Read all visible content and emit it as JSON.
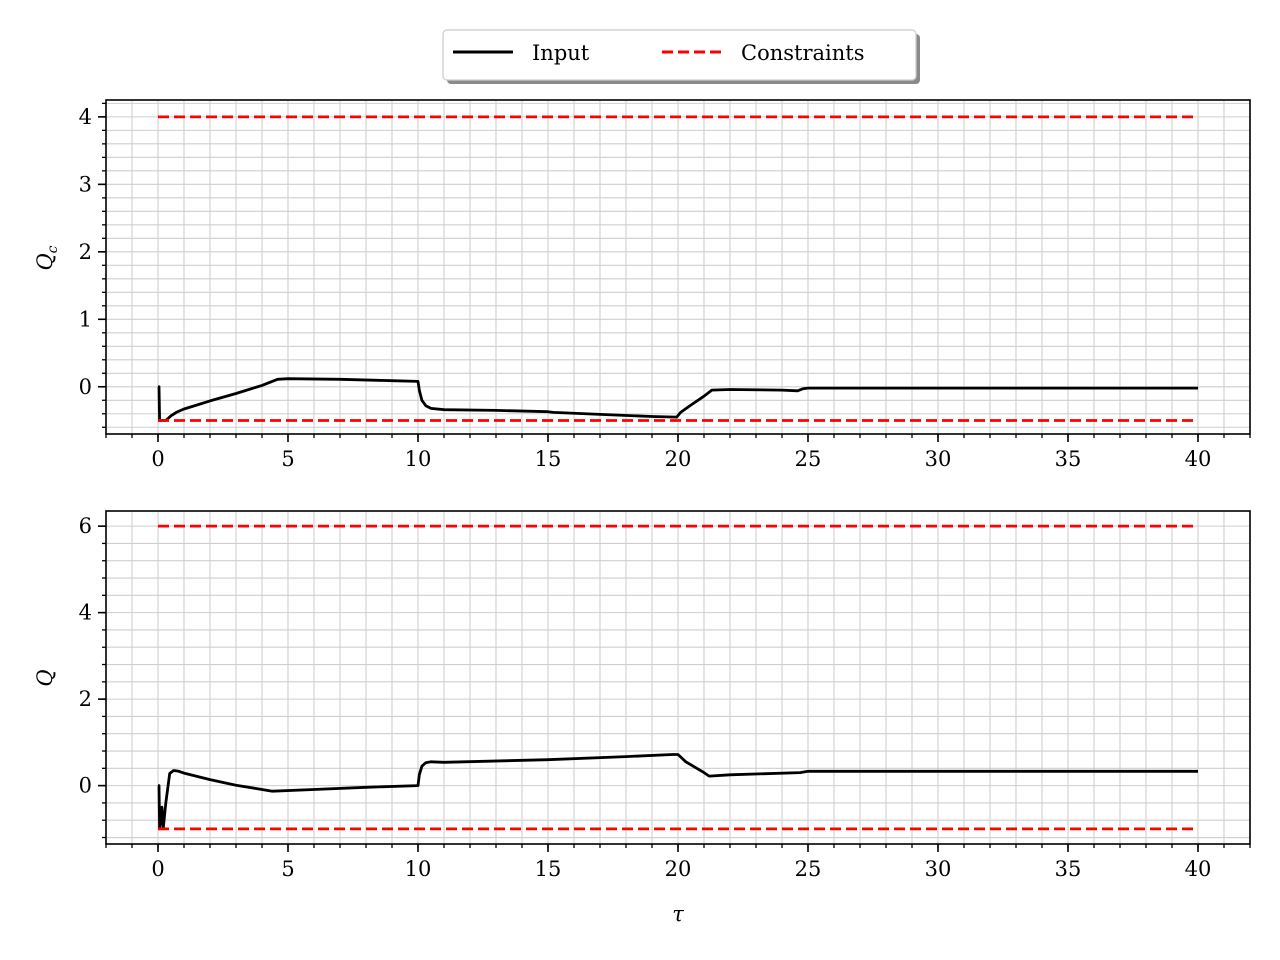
{
  "legend": {
    "location": "top-center",
    "entries": [
      {
        "label": "Input",
        "color": "#000000",
        "style": "solid"
      },
      {
        "label": "Constraints",
        "color": "#ff0000",
        "style": "dashed"
      }
    ]
  },
  "chart_data": [
    {
      "type": "line",
      "title": "",
      "xlabel": "",
      "ylabel": "Q_c",
      "xlim": [
        -2,
        42
      ],
      "ylim": [
        -0.7,
        4.25
      ],
      "xticks": [
        0,
        5,
        10,
        15,
        20,
        25,
        30,
        35,
        40
      ],
      "yticks": [
        0,
        1,
        2,
        3,
        4
      ],
      "grid": true,
      "series": [
        {
          "name": "Input",
          "color": "#000000",
          "style": "solid",
          "x": [
            0,
            0.04,
            0.06,
            0.1,
            0.3,
            0.5,
            0.7,
            1,
            1.5,
            2,
            3,
            4,
            4.6,
            5,
            7,
            9,
            10,
            10.05,
            10.15,
            10.3,
            10.5,
            11,
            13,
            15,
            15.2,
            17,
            19,
            19.95,
            20.1,
            20.5,
            21,
            21.3,
            22,
            24,
            24.6,
            24.8,
            25,
            30,
            35,
            40
          ],
          "y": [
            0,
            0,
            -0.5,
            -0.5,
            -0.5,
            -0.43,
            -0.38,
            -0.33,
            -0.27,
            -0.21,
            -0.1,
            0.02,
            0.11,
            0.12,
            0.11,
            0.09,
            0.08,
            -0.05,
            -0.2,
            -0.28,
            -0.32,
            -0.34,
            -0.35,
            -0.37,
            -0.38,
            -0.41,
            -0.44,
            -0.45,
            -0.38,
            -0.27,
            -0.14,
            -0.05,
            -0.04,
            -0.05,
            -0.06,
            -0.03,
            -0.02,
            -0.02,
            -0.02,
            -0.02
          ]
        },
        {
          "name": "Constraints",
          "color": "#ff0000",
          "style": "dashed",
          "x": [
            0,
            40
          ],
          "y": [
            4,
            4
          ]
        },
        {
          "name": "Constraints",
          "color": "#ff0000",
          "style": "dashed",
          "x": [
            0,
            40
          ],
          "y": [
            -0.5,
            -0.5
          ]
        }
      ]
    },
    {
      "type": "line",
      "title": "",
      "xlabel": "τ",
      "ylabel": "Q",
      "xlim": [
        -2,
        42
      ],
      "ylim": [
        -1.35,
        6.35
      ],
      "xticks": [
        0,
        5,
        10,
        15,
        20,
        25,
        30,
        35,
        40
      ],
      "yticks": [
        0,
        2,
        4,
        6
      ],
      "grid": true,
      "series": [
        {
          "name": "Input",
          "color": "#000000",
          "style": "solid",
          "x": [
            0,
            0.04,
            0.06,
            0.15,
            0.2,
            0.3,
            0.45,
            0.6,
            0.8,
            1,
            2,
            3,
            4.4,
            6,
            8,
            10,
            10.05,
            10.15,
            10.3,
            10.5,
            11,
            15,
            18,
            19.8,
            20,
            20.3,
            21,
            21.2,
            22,
            24.7,
            25,
            30,
            35,
            40
          ],
          "y": [
            0,
            0,
            -1,
            -0.5,
            -1,
            -0.4,
            0.28,
            0.35,
            0.33,
            0.29,
            0.14,
            0.01,
            -0.13,
            -0.09,
            -0.04,
            0,
            0.25,
            0.45,
            0.53,
            0.55,
            0.54,
            0.6,
            0.67,
            0.72,
            0.72,
            0.55,
            0.3,
            0.22,
            0.25,
            0.3,
            0.33,
            0.33,
            0.33,
            0.33
          ]
        },
        {
          "name": "Constraints",
          "color": "#ff0000",
          "style": "dashed",
          "x": [
            0,
            40
          ],
          "y": [
            6,
            6
          ]
        },
        {
          "name": "Constraints",
          "color": "#ff0000",
          "style": "dashed",
          "x": [
            0,
            40
          ],
          "y": [
            -1,
            -1
          ]
        }
      ]
    }
  ]
}
